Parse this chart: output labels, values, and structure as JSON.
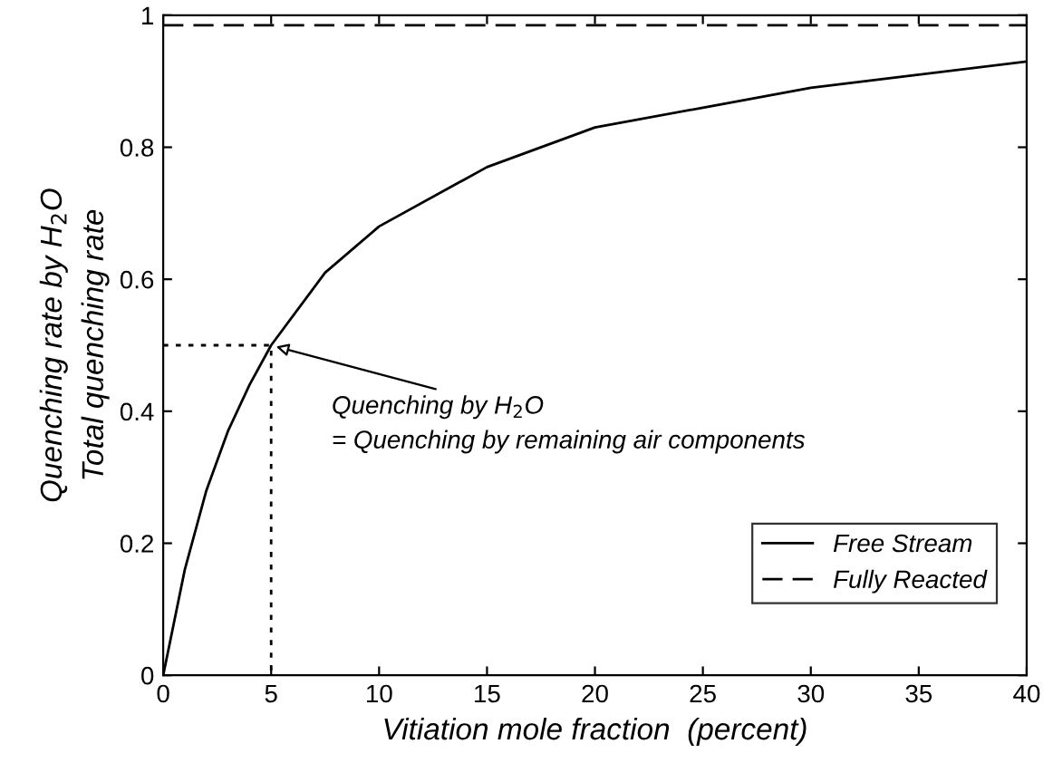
{
  "chart_data": {
    "type": "line",
    "xlabel": "Vitiation mole fraction  (percent)",
    "ylabel": "Quenching rate by H$_{2}$O\nTotal quenching rate",
    "xlim": [
      0,
      40
    ],
    "ylim": [
      0,
      1
    ],
    "xticks": [
      0,
      5,
      10,
      15,
      20,
      25,
      30,
      35,
      40
    ],
    "yticks": [
      0,
      0.2,
      0.4,
      0.6,
      0.8,
      1
    ],
    "series": [
      {
        "name": "Free Stream",
        "color": "#000000",
        "line_style": "solid",
        "x": [
          0,
          1,
          2,
          3,
          4,
          5,
          7.5,
          10,
          15,
          20,
          25,
          30,
          35,
          40
        ],
        "values": [
          0,
          0.16,
          0.28,
          0.37,
          0.44,
          0.5,
          0.61,
          0.68,
          0.77,
          0.83,
          0.86,
          0.89,
          0.91,
          0.93
        ]
      },
      {
        "name": "Fully Reacted",
        "color": "#000000",
        "line_style": "dashed",
        "x": [
          0,
          40
        ],
        "values": [
          0.985,
          0.985
        ]
      },
      {
        "color": "#000000",
        "line_style": "dotted",
        "x": [
          0,
          5,
          5
        ],
        "values": [
          0.5,
          0.5,
          0
        ]
      }
    ],
    "annotations": [
      {
        "text": "Quenching by H$_{2}$O\n= Quenching by remaining air components",
        "x": 5,
        "y": 0.5
      }
    ],
    "legend": "bottom right",
    "grid": false,
    "marker": "none"
  }
}
